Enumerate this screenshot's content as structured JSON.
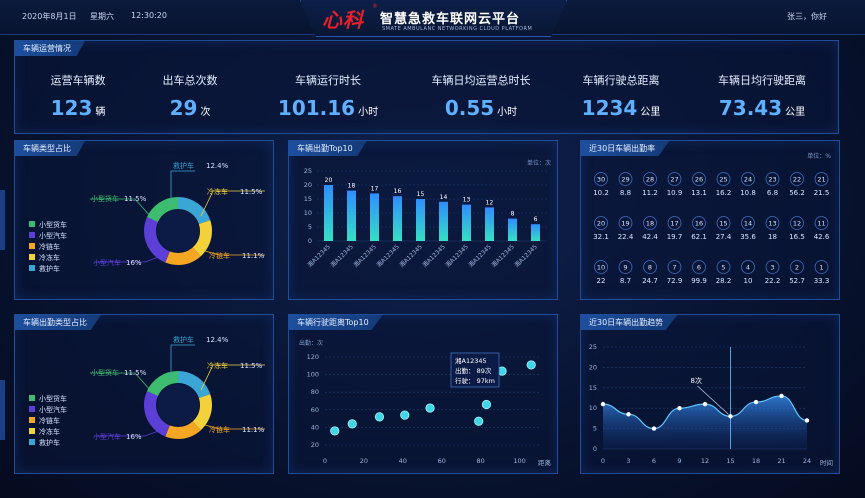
{
  "header": {
    "date": "2020年8月1日",
    "weekday": "星期六",
    "time": "12:30:20",
    "logo": "心科",
    "logo_mark": "®",
    "title": "智慧急救车联网云平台",
    "subtitle": "SMATE AMBULANC NETWORKING CLOUD PLATFORM",
    "user": "张三，你好"
  },
  "ops": {
    "title": "车辆运营情况",
    "kpis": [
      {
        "label": "运营车辆数",
        "value": "123",
        "unit": "辆"
      },
      {
        "label": "出车总次数",
        "value": "29",
        "unit": "次"
      },
      {
        "label": "车辆运行时长",
        "value": "101.16",
        "unit": "小时"
      },
      {
        "label": "车辆日均运营总时长",
        "value": "0.55",
        "unit": "小时"
      },
      {
        "label": "车辆行驶总距离",
        "value": "1234",
        "unit": "公里"
      },
      {
        "label": "车辆日均行驶距离",
        "value": "73.43",
        "unit": "公里"
      }
    ]
  },
  "panels": {
    "type_share": "车辆类型占比",
    "dispatch_top10": "车辆出勤Top10",
    "rate30": "近30日车辆出勤率",
    "dispatch_type_share": "车辆出勤类型占比",
    "distance_top10": "车辆行驶距离Top10",
    "trend30": "近30日车辆出勤趋势"
  },
  "units": {
    "times": "单位：次",
    "percent": "单位：%",
    "count_axis": "出勤：次",
    "distance_axis": "距离",
    "time_axis": "时间"
  },
  "tooltip": {
    "plate": "湘A12345",
    "dispatch": "出勤：  89次",
    "distance": "行驶：  97km"
  },
  "trend_callout": "8次",
  "chart_data": [
    {
      "type": "pie",
      "title": "车辆类型占比",
      "labels": [
        "救护车",
        "冷冻车",
        "冷链车",
        "小型汽车",
        "小型货车"
      ],
      "values": [
        12.4,
        11.5,
        11.1,
        16,
        11.5
      ],
      "display": [
        "救护车 12.4%",
        "冷冻车 11.5%",
        "冷链车 11.1%",
        "小型汽车 16%",
        "小型货车 11.5%"
      ],
      "legend": [
        "小型货车",
        "小型汽车",
        "冷链车",
        "冷冻车",
        "救护车"
      ],
      "colors": [
        "#3aa6d6",
        "#f2d13a",
        "#f5a623",
        "#5b3fd6",
        "#3dbb6f"
      ]
    },
    {
      "type": "bar",
      "title": "车辆出勤Top10",
      "categories": [
        "湘A12345",
        "湘A12345",
        "湘A12345",
        "湘A12345",
        "湘A12345",
        "湘A12345",
        "湘A12345",
        "湘A12345",
        "湘A12345",
        "湘A12345"
      ],
      "values": [
        20,
        18,
        17,
        16,
        15,
        14,
        13,
        12,
        8,
        6
      ],
      "ylim": [
        0,
        25
      ],
      "yticks": [
        0,
        5,
        10,
        15,
        20,
        25
      ]
    },
    {
      "type": "table",
      "title": "近30日车辆出勤率",
      "rows": [
        [
          {
            "day": "30",
            "rate": "10.2"
          },
          {
            "day": "29",
            "rate": "8.8"
          },
          {
            "day": "28",
            "rate": "11.2"
          },
          {
            "day": "27",
            "rate": "10.9"
          },
          {
            "day": "26",
            "rate": "13.1"
          },
          {
            "day": "25",
            "rate": "16.2"
          },
          {
            "day": "24",
            "rate": "10.8"
          },
          {
            "day": "23",
            "rate": "6.8"
          },
          {
            "day": "22",
            "rate": "56.2"
          },
          {
            "day": "21",
            "rate": "21.5"
          }
        ],
        [
          {
            "day": "20",
            "rate": "32.1"
          },
          {
            "day": "19",
            "rate": "22.4"
          },
          {
            "day": "18",
            "rate": "42.4"
          },
          {
            "day": "17",
            "rate": "19.7"
          },
          {
            "day": "16",
            "rate": "62.1"
          },
          {
            "day": "15",
            "rate": "27.4"
          },
          {
            "day": "14",
            "rate": "35.6"
          },
          {
            "day": "13",
            "rate": "18"
          },
          {
            "day": "12",
            "rate": "16.5"
          },
          {
            "day": "11",
            "rate": "42.6"
          }
        ],
        [
          {
            "day": "10",
            "rate": "22"
          },
          {
            "day": "9",
            "rate": "8.7"
          },
          {
            "day": "8",
            "rate": "24.7"
          },
          {
            "day": "7",
            "rate": "72.9"
          },
          {
            "day": "6",
            "rate": "99.9"
          },
          {
            "day": "5",
            "rate": "28.2"
          },
          {
            "day": "4",
            "rate": "10"
          },
          {
            "day": "3",
            "rate": "22.2"
          },
          {
            "day": "2",
            "rate": "52.7"
          },
          {
            "day": "1",
            "rate": "33.3"
          }
        ]
      ]
    },
    {
      "type": "pie",
      "title": "车辆出勤类型占比",
      "labels": [
        "救护车",
        "冷冻车",
        "冷链车",
        "小型汽车",
        "小型货车"
      ],
      "values": [
        12.4,
        11.5,
        11.1,
        16,
        11.5
      ],
      "display": [
        "救护车 12.4%",
        "冷冻车 11.5%",
        "冷链车 11.1%",
        "小型汽车 16%",
        "小型货车 11.5%"
      ],
      "legend": [
        "小型货车",
        "小型汽车",
        "冷链车",
        "冷冻车",
        "救护车"
      ],
      "colors": [
        "#3aa6d6",
        "#f2d13a",
        "#f5a623",
        "#5b3fd6",
        "#3dbb6f"
      ]
    },
    {
      "type": "scatter",
      "title": "车辆行驶距离Top10",
      "points": [
        [
          5,
          36
        ],
        [
          14,
          44
        ],
        [
          28,
          52
        ],
        [
          41,
          54
        ],
        [
          54,
          62
        ],
        [
          79,
          47
        ],
        [
          83,
          66
        ],
        [
          91,
          104
        ],
        [
          106,
          111
        ]
      ],
      "xlim": [
        0,
        110
      ],
      "ylim": [
        20,
        120
      ],
      "xticks": [
        0,
        20,
        40,
        60,
        80,
        100
      ],
      "yticks": [
        20,
        40,
        60,
        80,
        100,
        120
      ]
    },
    {
      "type": "area",
      "title": "近30日车辆出勤趋势",
      "x": [
        0,
        3,
        6,
        9,
        12,
        15,
        18,
        21,
        24
      ],
      "y": [
        11,
        8.5,
        5,
        10,
        11,
        8,
        11.5,
        13,
        7
      ],
      "xlim": [
        0,
        24
      ],
      "ylim": [
        0,
        25
      ],
      "xticks": [
        0,
        3,
        6,
        9,
        12,
        15,
        18,
        21,
        24
      ],
      "yticks": [
        0,
        5,
        10,
        15,
        20,
        25
      ],
      "highlight_x": 15
    }
  ]
}
